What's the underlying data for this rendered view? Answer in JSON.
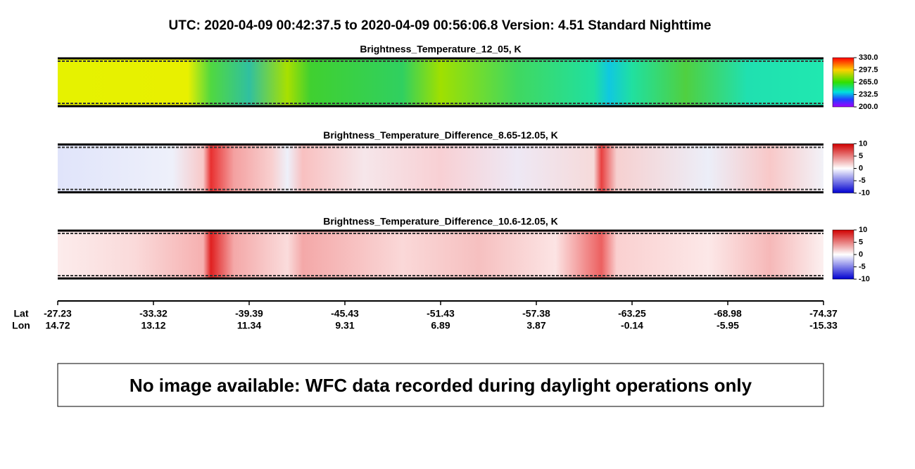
{
  "title": "UTC:  2020-04-09   00:42:37.5  to  2020-04-09   00:56:06.8    Version: 4.51  Standard Nighttime",
  "panels": [
    {
      "title": "Brightness_Temperature_12_05, K",
      "colorbar_ticks": [
        "330.0",
        "297.5",
        "265.0",
        "232.5",
        "200.0"
      ]
    },
    {
      "title": "Brightness_Temperature_Difference_8.65-12.05, K",
      "colorbar_ticks": [
        "10",
        "5",
        "0",
        "-5",
        "-10"
      ]
    },
    {
      "title": "Brightness_Temperature_Difference_10.6-12.05, K",
      "colorbar_ticks": [
        "10",
        "5",
        "0",
        "-5",
        "-10"
      ]
    }
  ],
  "x_axis": {
    "lat_label": "Lat",
    "lon_label": "Lon",
    "lat": [
      "-27.23",
      "-33.32",
      "-39.39",
      "-45.43",
      "-51.43",
      "-57.38",
      "-63.25",
      "-68.98",
      "-74.37"
    ],
    "lon": [
      "14.72",
      "13.12",
      "11.34",
      "9.31",
      "6.89",
      "3.87",
      "-0.14",
      "-5.95",
      "-15.33"
    ]
  },
  "notice": "No image available: WFC data recorded during daylight operations only"
}
